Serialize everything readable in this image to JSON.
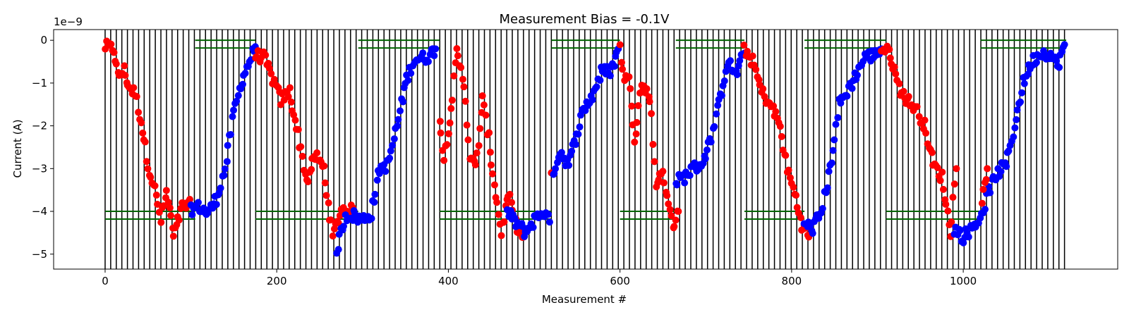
{
  "chart_data": {
    "type": "scatter",
    "title": "Measurement Bias = -0.1V",
    "xlabel": "Measurement #",
    "ylabel": "Current (A)",
    "y_offset_label": "1e−9",
    "y_multiplier": 1e-09,
    "xlim": [
      -60,
      1180
    ],
    "ylim": [
      -5.35,
      0.25
    ],
    "x_ticks": [
      0,
      200,
      400,
      600,
      800,
      1000
    ],
    "x_tick_labels": [
      "0",
      "200",
      "400",
      "600",
      "800",
      "1000"
    ],
    "y_ticks": [
      0,
      -1,
      -2,
      -3,
      -4,
      -5
    ],
    "y_tick_labels": [
      "0",
      "−1",
      "−2",
      "−3",
      "−4",
      "−5"
    ],
    "grid": false,
    "vertical_lines": {
      "color": "#000000",
      "x_start": 0,
      "x_end": 1120,
      "step": 6.5,
      "y_range": [
        -5.35,
        0.25
      ]
    },
    "marker_colors": {
      "red": "#ff0000",
      "blue": "#0000ff"
    },
    "green_lines": {
      "color": "#006400",
      "top_pair_y": [
        0.0,
        -0.18
      ],
      "bottom_pair_y": [
        -4.0,
        -4.18
      ],
      "top_segments": [
        [
          105,
          175
        ],
        [
          295,
          390
        ],
        [
          520,
          600
        ],
        [
          665,
          745
        ],
        [
          815,
          910
        ],
        [
          1020,
          1120
        ]
      ],
      "bottom_segments": [
        [
          0,
          105
        ],
        [
          175,
          295
        ],
        [
          390,
          520
        ],
        [
          600,
          665
        ],
        [
          745,
          815
        ],
        [
          910,
          1020
        ]
      ]
    },
    "series": [
      {
        "color": "red",
        "key_points": [
          [
            0,
            -0.15
          ],
          [
            10,
            -0.2
          ],
          [
            15,
            -0.85
          ],
          [
            22,
            -0.7
          ],
          [
            28,
            -1.1
          ],
          [
            35,
            -1.25
          ],
          [
            42,
            -1.9
          ],
          [
            50,
            -2.9
          ],
          [
            58,
            -3.5
          ],
          [
            65,
            -4.2
          ],
          [
            72,
            -3.55
          ],
          [
            80,
            -4.6
          ],
          [
            90,
            -3.9
          ],
          [
            100,
            -3.85
          ]
        ]
      },
      {
        "color": "blue",
        "key_points": [
          [
            100,
            -3.95
          ],
          [
            110,
            -3.9
          ],
          [
            120,
            -4.05
          ],
          [
            130,
            -3.7
          ],
          [
            140,
            -3.0
          ],
          [
            150,
            -1.7
          ],
          [
            160,
            -0.9
          ],
          [
            170,
            -0.4
          ],
          [
            175,
            -0.15
          ]
        ]
      },
      {
        "color": "red",
        "key_points": [
          [
            175,
            -0.35
          ],
          [
            185,
            -0.4
          ],
          [
            195,
            -0.9
          ],
          [
            205,
            -1.4
          ],
          [
            215,
            -1.2
          ],
          [
            225,
            -2.2
          ],
          [
            235,
            -3.3
          ],
          [
            245,
            -2.7
          ],
          [
            255,
            -3.0
          ],
          [
            265,
            -4.6
          ],
          [
            275,
            -3.95
          ],
          [
            290,
            -4.0
          ]
        ]
      },
      {
        "color": "blue",
        "key_points": [
          [
            270,
            -4.9
          ],
          [
            280,
            -4.1
          ],
          [
            290,
            -4.1
          ],
          [
            300,
            -4.2
          ],
          [
            310,
            -4.05
          ],
          [
            320,
            -3.0
          ],
          [
            330,
            -2.9
          ],
          [
            340,
            -2.0
          ],
          [
            350,
            -1.0
          ],
          [
            360,
            -0.45
          ],
          [
            375,
            -0.4
          ],
          [
            385,
            -0.2
          ]
        ]
      },
      {
        "color": "red",
        "key_points": [
          [
            390,
            -1.8
          ],
          [
            395,
            -2.8
          ],
          [
            405,
            -1.3
          ],
          [
            410,
            -0.3
          ],
          [
            418,
            -1.0
          ],
          [
            425,
            -2.7
          ],
          [
            432,
            -3.0
          ],
          [
            440,
            -1.4
          ],
          [
            447,
            -2.3
          ],
          [
            455,
            -3.6
          ],
          [
            462,
            -4.5
          ],
          [
            470,
            -3.6
          ],
          [
            478,
            -4.3
          ],
          [
            488,
            -4.6
          ]
        ]
      },
      {
        "color": "blue",
        "key_points": [
          [
            468,
            -4.0
          ],
          [
            480,
            -4.3
          ],
          [
            490,
            -4.5
          ],
          [
            500,
            -4.2
          ],
          [
            510,
            -4.0
          ],
          [
            518,
            -4.25
          ]
        ]
      },
      {
        "color": "red",
        "key_points": [
          [
            520,
            -3.1
          ]
        ]
      },
      {
        "color": "blue",
        "key_points": [
          [
            522,
            -3.1
          ],
          [
            530,
            -2.6
          ],
          [
            540,
            -2.9
          ],
          [
            548,
            -2.3
          ],
          [
            558,
            -1.6
          ],
          [
            568,
            -1.3
          ],
          [
            578,
            -0.75
          ],
          [
            590,
            -0.7
          ],
          [
            598,
            -0.2
          ]
        ]
      },
      {
        "color": "red",
        "key_points": [
          [
            600,
            -0.2
          ],
          [
            605,
            -0.85
          ],
          [
            612,
            -1.0
          ],
          [
            617,
            -2.3
          ],
          [
            625,
            -1.05
          ],
          [
            635,
            -1.3
          ],
          [
            642,
            -3.4
          ],
          [
            648,
            -3.0
          ],
          [
            655,
            -3.7
          ],
          [
            662,
            -4.3
          ],
          [
            668,
            -4.0
          ]
        ]
      },
      {
        "color": "blue",
        "key_points": [
          [
            665,
            -3.3
          ],
          [
            675,
            -3.2
          ],
          [
            685,
            -3.0
          ],
          [
            695,
            -2.9
          ],
          [
            705,
            -2.4
          ],
          [
            715,
            -1.5
          ],
          [
            725,
            -0.5
          ],
          [
            735,
            -0.8
          ],
          [
            745,
            -0.3
          ]
        ]
      },
      {
        "color": "red",
        "key_points": [
          [
            745,
            -0.2
          ],
          [
            755,
            -0.5
          ],
          [
            765,
            -1.2
          ],
          [
            775,
            -1.5
          ],
          [
            785,
            -1.9
          ],
          [
            795,
            -3.0
          ],
          [
            805,
            -3.7
          ],
          [
            812,
            -4.3
          ],
          [
            820,
            -4.6
          ]
        ]
      },
      {
        "color": "blue",
        "key_points": [
          [
            815,
            -4.3
          ],
          [
            825,
            -4.4
          ],
          [
            835,
            -4.0
          ],
          [
            845,
            -3.0
          ],
          [
            855,
            -1.5
          ],
          [
            865,
            -1.2
          ],
          [
            875,
            -0.8
          ],
          [
            885,
            -0.4
          ],
          [
            895,
            -0.35
          ],
          [
            905,
            -0.2
          ]
        ]
      },
      {
        "color": "red",
        "key_points": [
          [
            905,
            -0.2
          ],
          [
            915,
            -0.3
          ],
          [
            925,
            -1.1
          ],
          [
            935,
            -1.4
          ],
          [
            945,
            -1.6
          ],
          [
            955,
            -2.0
          ],
          [
            965,
            -2.9
          ],
          [
            975,
            -3.2
          ],
          [
            985,
            -4.5
          ],
          [
            992,
            -3.0
          ]
        ]
      },
      {
        "color": "blue",
        "key_points": [
          [
            990,
            -4.4
          ],
          [
            1000,
            -4.6
          ],
          [
            1010,
            -4.4
          ],
          [
            1020,
            -4.15
          ],
          [
            1030,
            -3.5
          ],
          [
            1040,
            -3.1
          ],
          [
            1050,
            -2.9
          ],
          [
            1060,
            -2.0
          ],
          [
            1070,
            -1.0
          ],
          [
            1080,
            -0.5
          ],
          [
            1090,
            -0.3
          ],
          [
            1100,
            -0.3
          ],
          [
            1110,
            -0.6
          ],
          [
            1118,
            -0.1
          ]
        ]
      },
      {
        "color": "red",
        "key_points": [
          [
            1022,
            -3.8
          ],
          [
            1025,
            -3.4
          ],
          [
            1028,
            -3.0
          ]
        ]
      }
    ]
  }
}
